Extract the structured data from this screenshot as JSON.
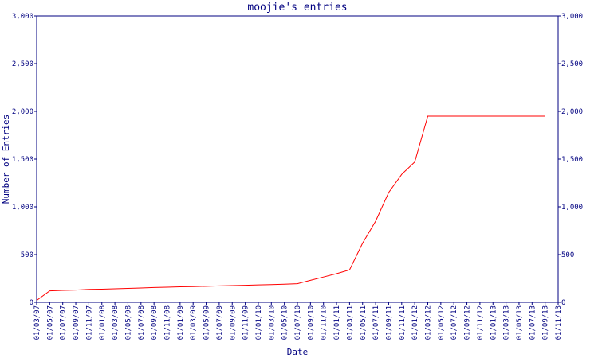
{
  "chart_data": {
    "type": "line",
    "title": "moojie's entries",
    "x_label": "Date",
    "y_label": "Number of Entries",
    "categories": [
      "01/03/07",
      "01/05/07",
      "01/07/07",
      "01/09/07",
      "01/11/07",
      "01/01/08",
      "01/03/08",
      "01/05/08",
      "01/07/08",
      "01/09/08",
      "01/11/08",
      "01/01/09",
      "01/03/09",
      "01/05/09",
      "01/07/09",
      "01/09/09",
      "01/11/09",
      "01/01/10",
      "01/03/10",
      "01/05/10",
      "01/07/10",
      "01/09/10",
      "01/11/10",
      "01/01/11",
      "01/03/11",
      "01/05/11",
      "01/07/11",
      "01/09/11",
      "01/11/11",
      "01/01/12",
      "01/03/12",
      "01/05/12",
      "01/07/12",
      "01/09/12",
      "01/11/12",
      "01/01/13",
      "01/03/13",
      "01/05/13",
      "01/07/13",
      "01/09/13",
      "01/11/13"
    ],
    "series": [
      {
        "name": "entries",
        "color": "#ff0000",
        "values": [
          20,
          120,
          125,
          128,
          135,
          138,
          142,
          146,
          150,
          155,
          158,
          162,
          165,
          168,
          172,
          175,
          178,
          182,
          185,
          190,
          195,
          230,
          265,
          300,
          340,
          620,
          850,
          1150,
          1340,
          1470,
          1950,
          1950,
          1950,
          1950,
          1950,
          1950,
          1950,
          1950,
          1950,
          1950,
          null
        ]
      }
    ],
    "ylim": [
      0,
      3000
    ],
    "yticks": [
      0,
      500,
      {
        "value": 1000,
        "label": "1,000"
      },
      {
        "value": 1500,
        "label": "1,500"
      },
      {
        "value": 2000,
        "label": "2,000"
      },
      {
        "value": 2500,
        "label": "2,500"
      },
      {
        "value": 3000,
        "label": "3,000"
      }
    ],
    "axis_color": "#000080",
    "grid": false
  }
}
